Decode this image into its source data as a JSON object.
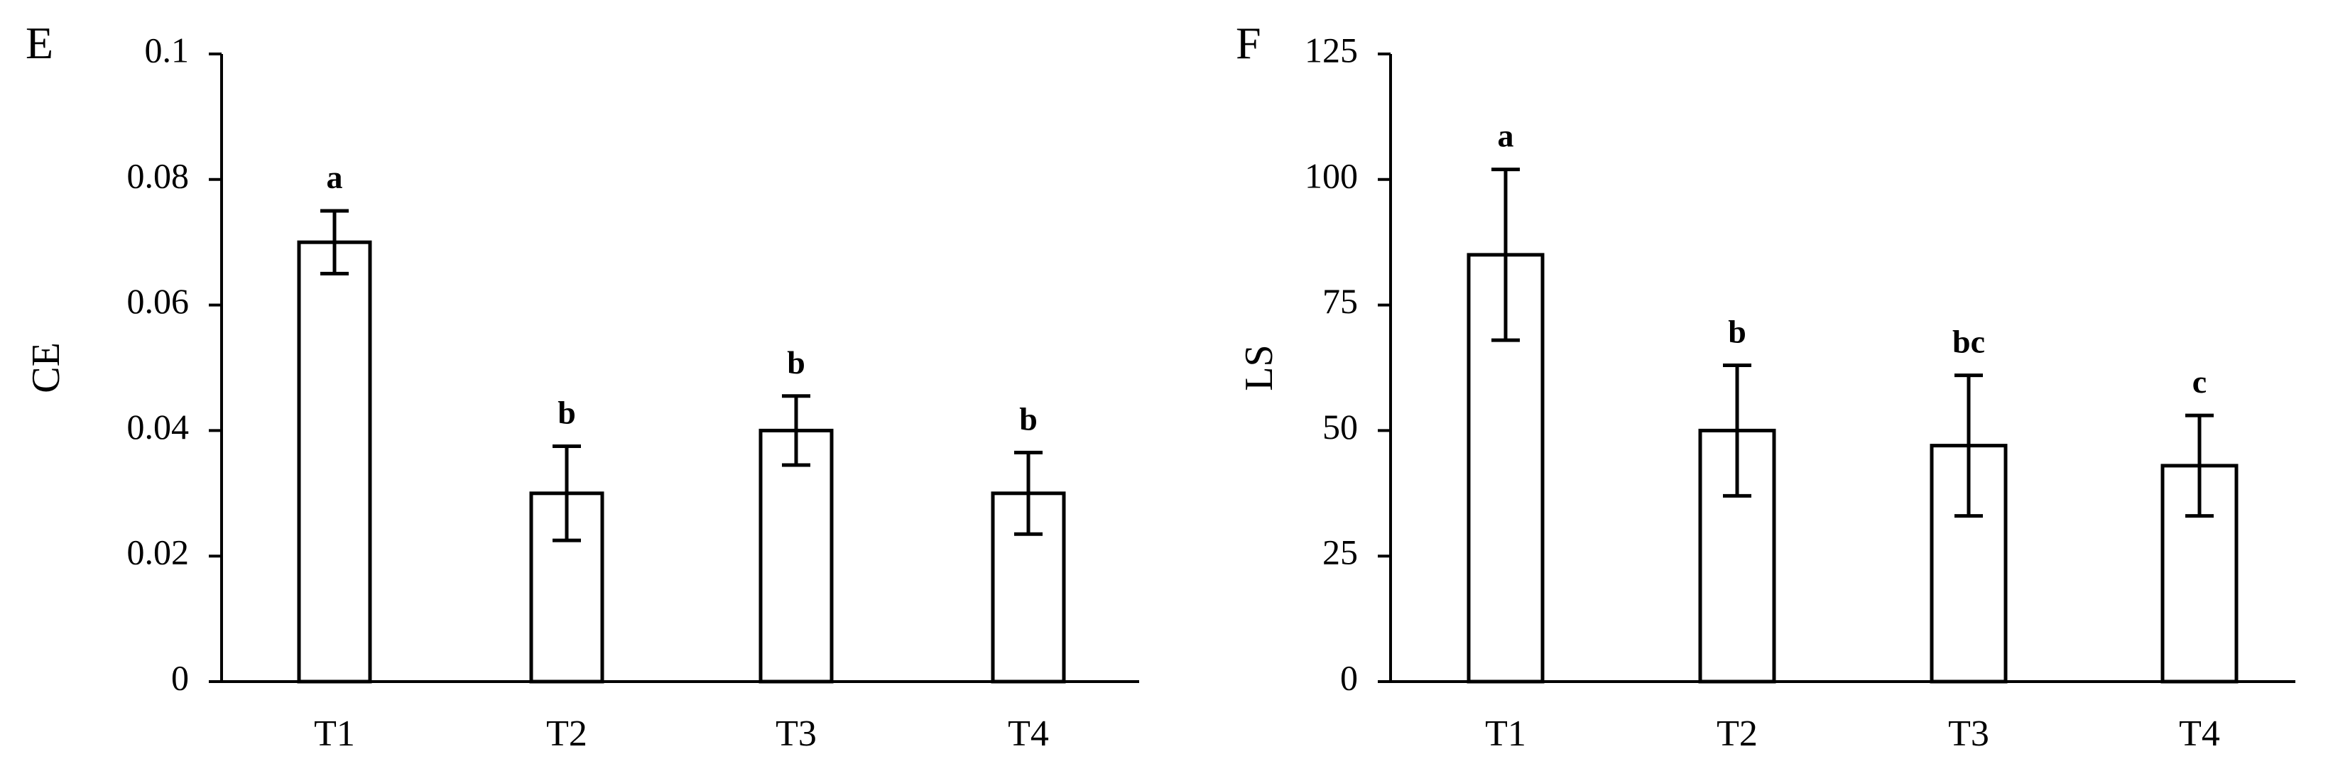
{
  "chart_data": [
    {
      "type": "bar",
      "panel_label": "E",
      "categories": [
        "T1",
        "T2",
        "T3",
        "T4"
      ],
      "values": [
        0.07,
        0.03,
        0.04,
        0.03
      ],
      "error": [
        0.005,
        0.0075,
        0.0055,
        0.0065
      ],
      "significance": [
        "a",
        "b",
        "b",
        "b"
      ],
      "ylabel": "CE",
      "xlabel": "",
      "ylim": [
        0,
        0.1
      ],
      "yticks": [
        "0",
        "0.02",
        "0.04",
        "0.06",
        "0.08",
        "0.1"
      ],
      "bar_fill": "#ffffff",
      "bar_stroke": "#000000",
      "grid": false
    },
    {
      "type": "bar",
      "panel_label": "F",
      "categories": [
        "T1",
        "T2",
        "T3",
        "T4"
      ],
      "values": [
        85,
        50,
        47,
        43
      ],
      "error": [
        17,
        13,
        14,
        10
      ],
      "significance": [
        "a",
        "b",
        "bc",
        "c"
      ],
      "ylabel": "LS",
      "xlabel": "",
      "ylim": [
        0,
        125
      ],
      "yticks": [
        "0",
        "25",
        "50",
        "75",
        "100",
        "125"
      ],
      "bar_fill": "#ffffff",
      "bar_stroke": "#000000",
      "grid": false
    }
  ]
}
